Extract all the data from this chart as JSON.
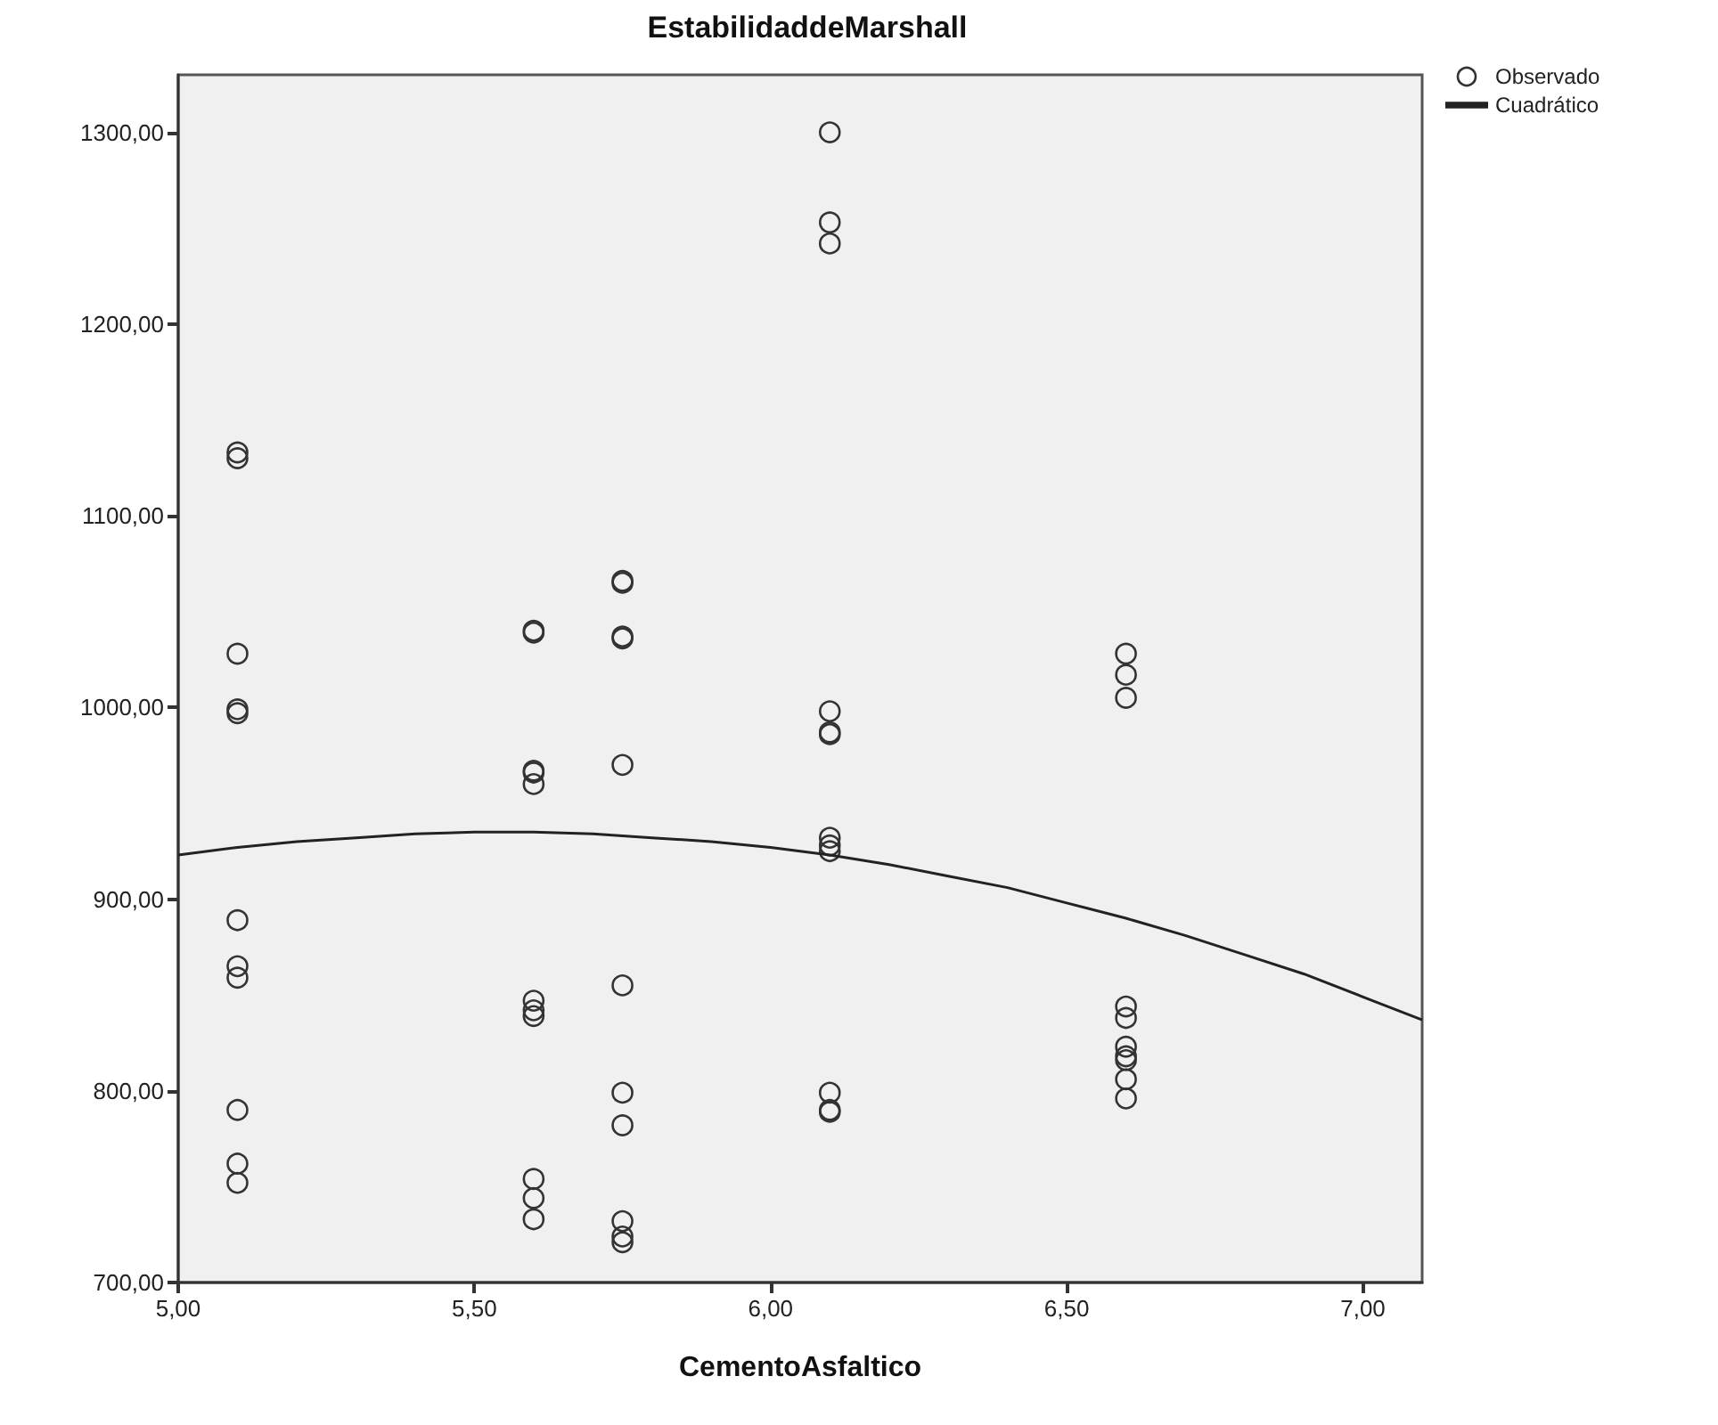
{
  "chart_data": {
    "type": "scatter",
    "title": "EstabilidaddeMarshall",
    "xlabel": "CementoAsfaltico",
    "xlim": [
      5.0,
      7.1
    ],
    "ylim": [
      700,
      1330
    ],
    "xticks": [
      {
        "value": 5,
        "label": "5,00"
      },
      {
        "value": 5.5,
        "label": "5,50"
      },
      {
        "value": 6,
        "label": "6,00"
      },
      {
        "value": 6.5,
        "label": "6,50"
      },
      {
        "value": 7,
        "label": "7,00"
      }
    ],
    "yticks": [
      {
        "value": 700,
        "label": "700,00"
      },
      {
        "value": 800,
        "label": "800,00"
      },
      {
        "value": 900,
        "label": "900,00"
      },
      {
        "value": 1000,
        "label": "1000,00"
      },
      {
        "value": 1100,
        "label": "1100,00"
      },
      {
        "value": 1200,
        "label": "1200,00"
      },
      {
        "value": 1300,
        "label": "1300,00"
      }
    ],
    "grid": false,
    "legend": "top right",
    "marker": "circle",
    "series": [
      {
        "name": "Observado",
        "color": "#333333",
        "x": [
          5.1,
          5.1,
          5.1,
          5.1,
          5.1,
          5.1,
          5.1,
          5.1,
          5.1,
          5.1,
          5.1,
          5.6,
          5.6,
          5.6,
          5.6,
          5.6,
          5.6,
          5.6,
          5.6,
          5.6,
          5.6,
          5.6,
          5.75,
          5.75,
          5.75,
          5.75,
          5.75,
          5.75,
          5.75,
          5.75,
          5.75,
          5.75,
          5.75,
          6.1,
          6.1,
          6.1,
          6.1,
          6.1,
          6.1,
          6.1,
          6.1,
          6.1,
          6.1,
          6.1,
          6.1,
          6.6,
          6.6,
          6.6,
          6.6,
          6.6,
          6.6,
          6.6,
          6.6,
          6.6,
          6.6
        ],
        "values": [
          1133,
          1130,
          1028,
          999,
          997,
          889,
          865,
          859,
          790,
          762,
          752,
          1040,
          1039,
          967,
          966,
          960,
          847,
          842,
          839,
          754,
          744,
          733,
          1066,
          1065,
          1037,
          1036,
          970,
          855,
          799,
          782,
          732,
          724,
          721,
          1300,
          1253,
          1242,
          998,
          987,
          986,
          932,
          928,
          925,
          799,
          790,
          789,
          1028,
          1017,
          1005,
          844,
          838,
          823,
          818,
          816,
          806,
          796
        ]
      },
      {
        "name": "Cuadrático",
        "type": "line",
        "color": "#222222",
        "line_style": "solid",
        "marker": "none",
        "x": [
          5.0,
          5.1,
          5.2,
          5.3,
          5.4,
          5.5,
          5.6,
          5.7,
          5.8,
          5.9,
          6.0,
          6.1,
          6.2,
          6.3,
          6.4,
          6.5,
          6.6,
          6.7,
          6.8,
          6.9,
          7.0,
          7.1
        ],
        "values": [
          923,
          927,
          930,
          932,
          934,
          935,
          935,
          934,
          932,
          930,
          927,
          923,
          918,
          912,
          906,
          898,
          890,
          881,
          871,
          861,
          849,
          837
        ]
      }
    ]
  }
}
